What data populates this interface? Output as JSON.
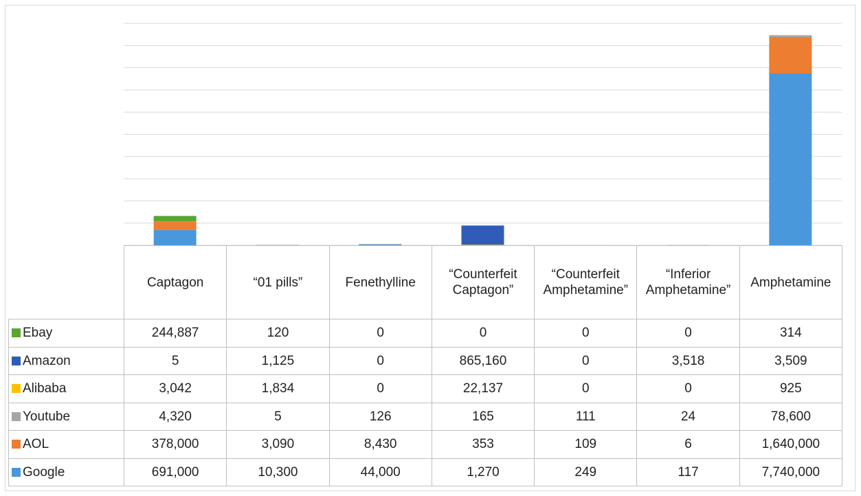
{
  "chart_data": {
    "type": "stacked_bar",
    "categories": [
      "Captagon",
      "“01 pills”",
      "Fenethylline",
      "“Counterfeit Captagon”",
      "“Counterfeit Amphetamine”",
      "“Inferior Amphetamine”",
      "Amphetamine"
    ],
    "series": [
      {
        "name": "Ebay",
        "color": "#5ba532",
        "values": [
          244887,
          120,
          0,
          0,
          0,
          0,
          314
        ],
        "value_labels": [
          "244,887",
          "120",
          "0",
          "0",
          "0",
          "0",
          "314"
        ]
      },
      {
        "name": "Amazon",
        "color": "#2e5cb8",
        "values": [
          5,
          1125,
          0,
          865160,
          0,
          3518,
          3509
        ],
        "value_labels": [
          "5",
          "1,125",
          "0",
          "865,160",
          "0",
          "3,518",
          "3,509"
        ]
      },
      {
        "name": "Alibaba",
        "color": "#ffc000",
        "values": [
          3042,
          1834,
          0,
          22137,
          0,
          0,
          925
        ],
        "value_labels": [
          "3,042",
          "1,834",
          "0",
          "22,137",
          "0",
          "0",
          "925"
        ]
      },
      {
        "name": "Youtube",
        "color": "#a5a5a5",
        "values": [
          4320,
          5,
          126,
          165,
          111,
          24,
          78600
        ],
        "value_labels": [
          "4,320",
          "5",
          "126",
          "165",
          "111",
          "24",
          "78,600"
        ]
      },
      {
        "name": "AOL",
        "color": "#ed7d31",
        "values": [
          378000,
          3090,
          8430,
          353,
          109,
          6,
          1640000
        ],
        "value_labels": [
          "378,000",
          "3,090",
          "8,430",
          "353",
          "109",
          "6",
          "1,640,000"
        ]
      },
      {
        "name": "Google",
        "color": "#4a98dc",
        "values": [
          691000,
          10300,
          44000,
          1270,
          249,
          117,
          7740000
        ],
        "value_labels": [
          "691,000",
          "10,300",
          "44,000",
          "1,270",
          "249",
          "117",
          "7,740,000"
        ]
      }
    ],
    "ylim": [
      0,
      10000000
    ],
    "yticks": [
      0,
      1000000,
      2000000,
      3000000,
      4000000,
      5000000,
      6000000,
      7000000,
      8000000,
      9000000,
      10000000
    ],
    "grid": true
  }
}
